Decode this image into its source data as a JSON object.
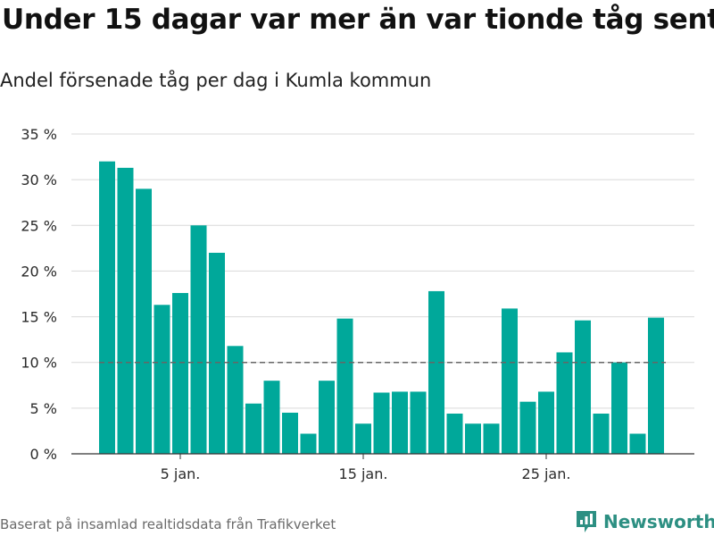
{
  "header": {
    "title": "Under 15 dagar var mer än var tionde tåg sent",
    "subtitle": "Andel försenade tåg per dag i Kumla kommun"
  },
  "footer": {
    "source": "Baserat på insamlad realtidsdata från Trafikverket",
    "brand": "Newsworthy"
  },
  "colors": {
    "bar": "#00a89a",
    "reference_line": "#666666",
    "grid": "#d9d9d9",
    "brand": "#2c8f82"
  },
  "chart_data": {
    "type": "bar",
    "title": "Under 15 dagar var mer än var tionde tåg sent",
    "subtitle": "Andel försenade tåg per dag i Kumla kommun",
    "x": [
      1,
      2,
      3,
      4,
      5,
      6,
      7,
      8,
      9,
      10,
      11,
      12,
      13,
      14,
      15,
      16,
      17,
      18,
      19,
      20,
      21,
      22,
      23,
      24,
      25,
      26,
      27,
      28,
      29,
      30,
      31
    ],
    "values": [
      32,
      31.3,
      29,
      16.3,
      17.6,
      25,
      22,
      11.8,
      5.5,
      8,
      4.5,
      2.2,
      8,
      14.8,
      3.3,
      6.7,
      6.8,
      6.8,
      17.8,
      4.4,
      3.3,
      3.3,
      15.9,
      5.7,
      6.8,
      11.1,
      14.6,
      4.4,
      10,
      2.2,
      14.9
    ],
    "ylim": [
      0,
      35
    ],
    "y_ticks": [
      0,
      5,
      10,
      15,
      20,
      25,
      30,
      35
    ],
    "y_tick_labels": [
      "0 %",
      "5 %",
      "10 %",
      "15 %",
      "20 %",
      "25 %",
      "30 %",
      "35 %"
    ],
    "x_ticks": [
      5,
      15,
      25
    ],
    "x_tick_labels": [
      "5 jan.",
      "15 jan.",
      "25 jan."
    ],
    "reference_line": 10,
    "grid": true,
    "legend": false
  }
}
